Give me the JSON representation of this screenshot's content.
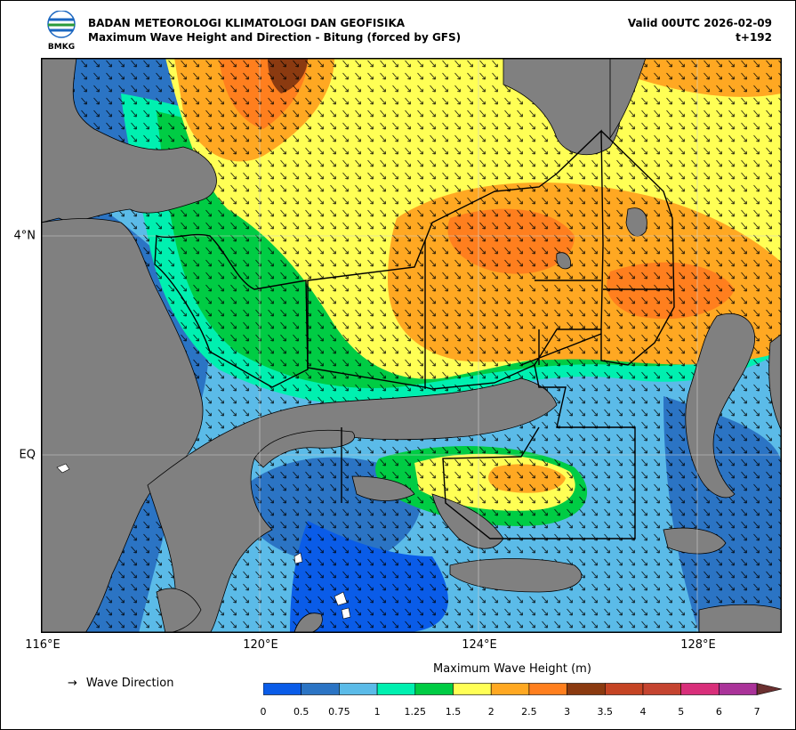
{
  "header": {
    "logo_text": "BMKG",
    "title": "BADAN METEOROLOGI KLIMATOLOGI DAN GEOFISIKA",
    "subtitle": "Maximum Wave Height and Direction - Bitung (forced by GFS)",
    "valid": "Valid 00UTC 2026-02-09",
    "step": "t+192"
  },
  "axes": {
    "lon_labels": [
      "116°E",
      "120°E",
      "124°E",
      "128°E"
    ],
    "lat_labels": [
      "4°N",
      "EQ"
    ]
  },
  "legend": {
    "direction_arrow": "→",
    "direction_label": "Wave Direction"
  },
  "colorbar": {
    "title": "Maximum Wave Height (m)",
    "levels": [
      "0",
      "0.5",
      "0.75",
      "1",
      "1.25",
      "1.5",
      "2",
      "2.5",
      "3",
      "3.5",
      "4",
      "5",
      "6",
      "7"
    ],
    "colors": [
      "#0a5ce8",
      "#2b74c4",
      "#5bbbe8",
      "#00f0b0",
      "#00cc44",
      "#ffff55",
      "#ffa822",
      "#ff7f1e",
      "#8b3a10",
      "#c54424",
      "#c54430",
      "#d82f7a",
      "#aa3399"
    ],
    "extend_color": "#6b3030"
  },
  "colors": {
    "land": "#808080",
    "boundary": "#000000"
  }
}
